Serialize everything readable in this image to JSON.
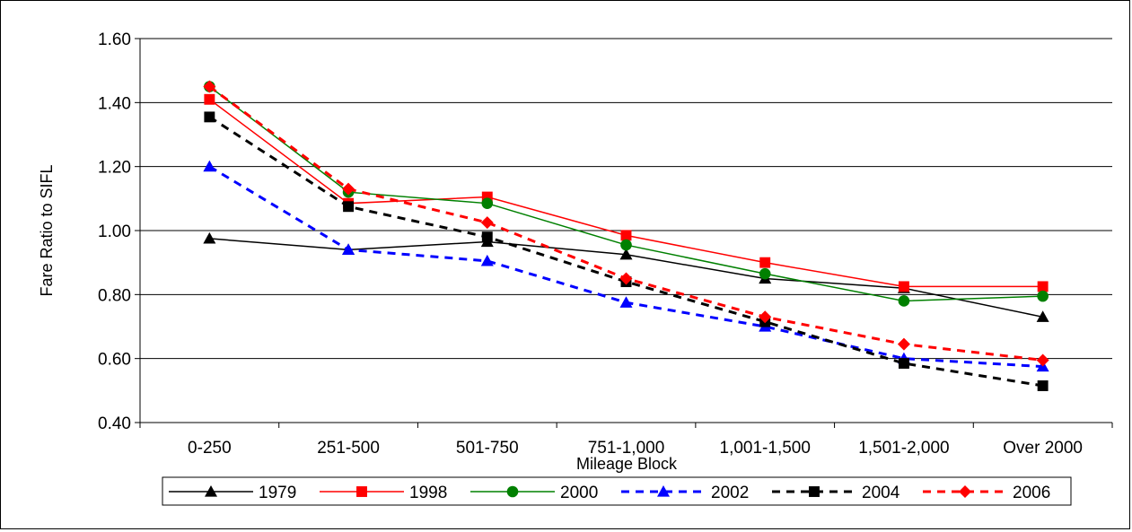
{
  "chart_data": {
    "type": "line",
    "title": "",
    "xlabel": "Mileage Block",
    "ylabel": "Fare Ratio to SIFL",
    "categories": [
      "0-250",
      "251-500",
      "501-750",
      "751-1,000",
      "1,001-1,500",
      "1,501-2,000",
      "Over 2000"
    ],
    "ylim": [
      0.4,
      1.6
    ],
    "yticks": [
      "0.40",
      "0.60",
      "0.80",
      "1.00",
      "1.20",
      "1.40",
      "1.60"
    ],
    "grid": "horizontal",
    "legend_position": "bottom",
    "series": [
      {
        "name": "1979",
        "color": "#000000",
        "dash": "solid",
        "marker": "triangle",
        "values": [
          0.975,
          0.94,
          0.965,
          0.925,
          0.85,
          0.82,
          0.73
        ]
      },
      {
        "name": "1998",
        "color": "#ff0000",
        "dash": "solid",
        "marker": "square",
        "values": [
          1.41,
          1.085,
          1.105,
          0.985,
          0.9,
          0.825,
          0.825
        ]
      },
      {
        "name": "2000",
        "color": "#008000",
        "dash": "solid",
        "marker": "circle",
        "values": [
          1.45,
          1.12,
          1.085,
          0.955,
          0.865,
          0.78,
          0.795
        ]
      },
      {
        "name": "2002",
        "color": "#0000ff",
        "dash": "dashed",
        "marker": "triangle",
        "values": [
          1.2,
          0.94,
          0.905,
          0.775,
          0.7,
          0.6,
          0.575
        ]
      },
      {
        "name": "2004",
        "color": "#000000",
        "dash": "dashed",
        "marker": "square",
        "values": [
          1.355,
          1.075,
          0.98,
          0.84,
          0.715,
          0.585,
          0.515
        ]
      },
      {
        "name": "2006",
        "color": "#ff0000",
        "dash": "dashed",
        "marker": "diamond",
        "values": [
          1.45,
          1.13,
          1.025,
          0.85,
          0.73,
          0.645,
          0.595
        ]
      }
    ]
  }
}
